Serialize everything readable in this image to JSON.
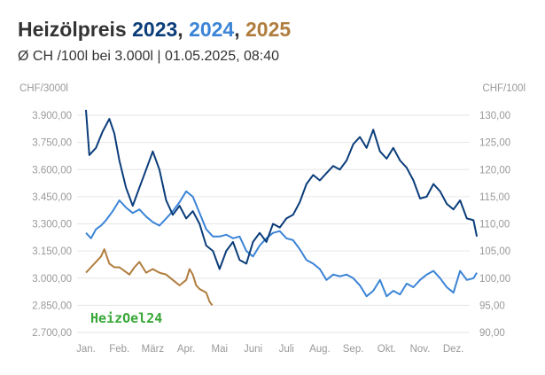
{
  "header": {
    "title_prefix": "Heizölpreis",
    "year_a": "2023",
    "sep_a": ", ",
    "year_b": "2024",
    "sep_b": ", ",
    "year_c": "2025",
    "subtitle": "Ø CH /100l bei 3.000l | 01.05.2025, 08:40"
  },
  "watermark": "HeizOel24",
  "colors": {
    "y2023": "#0b3d7a",
    "y2024": "#3b84d6",
    "y2025": "#b07d3e"
  },
  "chart_data": {
    "type": "line",
    "left_unit": "CHF/3000l",
    "right_unit": "CHF/100l",
    "ylim_left": [
      2700,
      3900
    ],
    "ylim_right": [
      90,
      130
    ],
    "left_ticks": [
      "3.900,00",
      "3.750,00",
      "3.600,00",
      "3.450,00",
      "3.300,00",
      "3.150,00",
      "3.000,00",
      "2.850,00",
      "2.700,00"
    ],
    "right_ticks": [
      "130,00",
      "125,00",
      "120,00",
      "115,00",
      "110,00",
      "105,00",
      "100,00",
      "95,00",
      "90,00"
    ],
    "x_ticks": [
      "Jan.",
      "Feb.",
      "März",
      "Apr.",
      "Mai",
      "Juni",
      "Juli",
      "Aug.",
      "Sep.",
      "Okt.",
      "Nov.",
      "Dez."
    ],
    "grid": true,
    "series": [
      {
        "name": "2023",
        "color": "#0b3d7a",
        "points": [
          [
            0.0,
            3930
          ],
          [
            0.1,
            3680
          ],
          [
            0.3,
            3720
          ],
          [
            0.5,
            3810
          ],
          [
            0.7,
            3880
          ],
          [
            0.85,
            3800
          ],
          [
            1.0,
            3650
          ],
          [
            1.2,
            3500
          ],
          [
            1.4,
            3400
          ],
          [
            1.6,
            3500
          ],
          [
            1.8,
            3600
          ],
          [
            2.0,
            3700
          ],
          [
            2.2,
            3600
          ],
          [
            2.4,
            3430
          ],
          [
            2.6,
            3350
          ],
          [
            2.8,
            3400
          ],
          [
            3.0,
            3330
          ],
          [
            3.2,
            3370
          ],
          [
            3.4,
            3300
          ],
          [
            3.6,
            3180
          ],
          [
            3.8,
            3150
          ],
          [
            4.0,
            3050
          ],
          [
            4.2,
            3150
          ],
          [
            4.4,
            3200
          ],
          [
            4.6,
            3100
          ],
          [
            4.8,
            3080
          ],
          [
            5.0,
            3200
          ],
          [
            5.2,
            3250
          ],
          [
            5.4,
            3200
          ],
          [
            5.6,
            3300
          ],
          [
            5.8,
            3280
          ],
          [
            6.0,
            3330
          ],
          [
            6.2,
            3350
          ],
          [
            6.4,
            3420
          ],
          [
            6.6,
            3520
          ],
          [
            6.8,
            3570
          ],
          [
            7.0,
            3540
          ],
          [
            7.2,
            3580
          ],
          [
            7.4,
            3620
          ],
          [
            7.6,
            3600
          ],
          [
            7.8,
            3650
          ],
          [
            8.0,
            3740
          ],
          [
            8.2,
            3780
          ],
          [
            8.4,
            3720
          ],
          [
            8.6,
            3820
          ],
          [
            8.8,
            3700
          ],
          [
            9.0,
            3660
          ],
          [
            9.2,
            3720
          ],
          [
            9.4,
            3650
          ],
          [
            9.6,
            3610
          ],
          [
            9.8,
            3540
          ],
          [
            10.0,
            3440
          ],
          [
            10.2,
            3450
          ],
          [
            10.4,
            3520
          ],
          [
            10.6,
            3480
          ],
          [
            10.8,
            3410
          ],
          [
            11.0,
            3380
          ],
          [
            11.2,
            3430
          ],
          [
            11.4,
            3330
          ],
          [
            11.6,
            3320
          ],
          [
            11.7,
            3230
          ]
        ]
      },
      {
        "name": "2024",
        "color": "#3b84d6",
        "points": [
          [
            0.0,
            3250
          ],
          [
            0.15,
            3220
          ],
          [
            0.3,
            3270
          ],
          [
            0.45,
            3290
          ],
          [
            0.6,
            3320
          ],
          [
            0.8,
            3370
          ],
          [
            1.0,
            3430
          ],
          [
            1.2,
            3390
          ],
          [
            1.4,
            3360
          ],
          [
            1.6,
            3380
          ],
          [
            1.8,
            3340
          ],
          [
            2.0,
            3310
          ],
          [
            2.2,
            3290
          ],
          [
            2.4,
            3330
          ],
          [
            2.6,
            3370
          ],
          [
            2.8,
            3420
          ],
          [
            3.0,
            3480
          ],
          [
            3.2,
            3450
          ],
          [
            3.4,
            3360
          ],
          [
            3.6,
            3270
          ],
          [
            3.8,
            3230
          ],
          [
            4.0,
            3230
          ],
          [
            4.2,
            3240
          ],
          [
            4.4,
            3220
          ],
          [
            4.6,
            3230
          ],
          [
            4.8,
            3150
          ],
          [
            5.0,
            3120
          ],
          [
            5.2,
            3180
          ],
          [
            5.4,
            3220
          ],
          [
            5.6,
            3250
          ],
          [
            5.8,
            3260
          ],
          [
            6.0,
            3220
          ],
          [
            6.2,
            3210
          ],
          [
            6.4,
            3160
          ],
          [
            6.6,
            3100
          ],
          [
            6.8,
            3080
          ],
          [
            7.0,
            3050
          ],
          [
            7.2,
            2990
          ],
          [
            7.4,
            3020
          ],
          [
            7.6,
            3010
          ],
          [
            7.8,
            3020
          ],
          [
            8.0,
            3000
          ],
          [
            8.2,
            2960
          ],
          [
            8.4,
            2900
          ],
          [
            8.6,
            2930
          ],
          [
            8.8,
            2990
          ],
          [
            9.0,
            2900
          ],
          [
            9.2,
            2930
          ],
          [
            9.4,
            2910
          ],
          [
            9.6,
            2970
          ],
          [
            9.8,
            2950
          ],
          [
            10.0,
            2990
          ],
          [
            10.2,
            3020
          ],
          [
            10.4,
            3040
          ],
          [
            10.6,
            3000
          ],
          [
            10.8,
            2950
          ],
          [
            11.0,
            2920
          ],
          [
            11.2,
            3040
          ],
          [
            11.4,
            2990
          ],
          [
            11.6,
            3000
          ],
          [
            11.7,
            3030
          ]
        ]
      },
      {
        "name": "2025",
        "color": "#b07d3e",
        "points": [
          [
            0.0,
            3030
          ],
          [
            0.15,
            3060
          ],
          [
            0.3,
            3090
          ],
          [
            0.45,
            3120
          ],
          [
            0.55,
            3160
          ],
          [
            0.7,
            3080
          ],
          [
            0.85,
            3060
          ],
          [
            1.0,
            3060
          ],
          [
            1.15,
            3040
          ],
          [
            1.3,
            3020
          ],
          [
            1.45,
            3060
          ],
          [
            1.6,
            3090
          ],
          [
            1.8,
            3030
          ],
          [
            2.0,
            3050
          ],
          [
            2.2,
            3030
          ],
          [
            2.4,
            3020
          ],
          [
            2.6,
            2990
          ],
          [
            2.8,
            2960
          ],
          [
            3.0,
            2990
          ],
          [
            3.1,
            3050
          ],
          [
            3.2,
            3020
          ],
          [
            3.3,
            2960
          ],
          [
            3.4,
            2940
          ],
          [
            3.5,
            2930
          ],
          [
            3.6,
            2920
          ],
          [
            3.7,
            2870
          ],
          [
            3.78,
            2850
          ]
        ]
      }
    ]
  }
}
